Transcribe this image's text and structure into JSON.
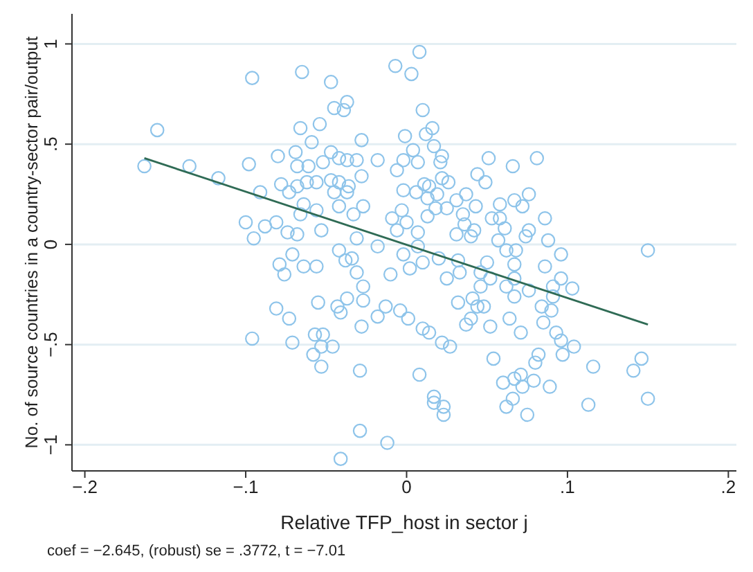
{
  "chart_data": {
    "type": "scatter",
    "xlabel": "Relative TFP_host in sector j",
    "ylabel": "No. of source countries in a country-sector pair/output",
    "annotations": [
      "coef = −2.645, (robust) se = .3772, t = −7.01"
    ],
    "xlim": [
      -0.208,
      0.205
    ],
    "ylim": [
      -1.13,
      1.15
    ],
    "xticks": [
      {
        "value": -0.2,
        "label": "−.2"
      },
      {
        "value": -0.1,
        "label": "−.1"
      },
      {
        "value": 0,
        "label": "0"
      },
      {
        "value": 0.1,
        "label": ".1"
      },
      {
        "value": 0.2,
        "label": ".2"
      }
    ],
    "yticks": [
      {
        "value": -1,
        "label": "−1"
      },
      {
        "value": -0.5,
        "label": "−.5"
      },
      {
        "value": 0,
        "label": "0"
      },
      {
        "value": 0.5,
        "label": ".5"
      },
      {
        "value": 1,
        "label": "1"
      }
    ],
    "grid": "y",
    "legend": false,
    "marker": "circle",
    "series": [
      {
        "color": "#8ec4ea",
        "x": [
          -0.163,
          -0.155,
          -0.135,
          -0.117,
          -0.096,
          -0.065,
          -0.098,
          -0.08,
          -0.078,
          -0.091,
          -0.1,
          -0.095,
          -0.088,
          -0.081,
          -0.074,
          -0.068,
          -0.071,
          -0.079,
          -0.064,
          -0.056,
          -0.047,
          -0.045,
          -0.037,
          -0.039,
          -0.066,
          -0.054,
          -0.059,
          -0.028,
          -0.069,
          -0.047,
          -0.042,
          -0.068,
          -0.061,
          -0.052,
          -0.037,
          -0.031,
          -0.062,
          -0.068,
          -0.073,
          -0.056,
          -0.047,
          -0.042,
          -0.036,
          -0.045,
          -0.037,
          -0.028,
          -0.064,
          -0.056,
          -0.042,
          -0.033,
          -0.053,
          -0.031,
          -0.042,
          -0.034,
          -0.066,
          -0.027,
          0.008,
          -0.007,
          0.003,
          0.01,
          0.016,
          0.012,
          -0.001,
          0.017,
          0.004,
          0.022,
          0.021,
          -0.018,
          -0.002,
          0.007,
          -0.006,
          0.051,
          0.066,
          0.081,
          0.044,
          0.049,
          0.022,
          0.026,
          0.011,
          0.014,
          -0.002,
          0.006,
          0.019,
          0.037,
          0.076,
          0.013,
          0.031,
          0.067,
          0.058,
          0.043,
          0.072,
          -0.003,
          0.018,
          0.025,
          0.013,
          -0.009,
          0.035,
          0.053,
          0.058,
          0.086,
          0,
          0.036,
          0.042,
          0.061,
          0.076,
          0.007,
          0.031,
          0.04,
          0.057,
          0.074,
          0.088,
          -0.006,
          0.007,
          -0.018,
          0.062,
          0.068,
          0.096,
          0.15,
          -0.002,
          0.02,
          0.01,
          0.05,
          0.002,
          0.067,
          0.086,
          0.032,
          -0.01,
          0.025,
          0.033,
          0.046,
          0.052,
          0.062,
          0.067,
          0.076,
          0.067,
          0.091,
          0.096,
          0.103,
          0.091,
          0.084,
          0.09,
          0.085,
          0.093,
          0.096,
          0.104,
          0.097,
          0.082,
          0.08,
          0.116,
          0.146,
          0.141,
          0.15,
          0.113,
          0.089,
          0.079,
          0.071,
          0.067,
          0.06,
          0.072,
          0.066,
          0.062,
          0.075,
          0.071,
          0.052,
          0.054,
          0.064,
          0.032,
          0.037,
          0.04,
          0.044,
          0.048,
          0.041,
          0.046,
          -0.004,
          0.001,
          -0.013,
          -0.018,
          0.01,
          0.014,
          0.022,
          0.027,
          0.008,
          0.017,
          0.017,
          0.023,
          0.023,
          -0.012,
          -0.076,
          -0.081,
          -0.073,
          -0.055,
          -0.043,
          -0.041,
          -0.037,
          -0.027,
          -0.028,
          -0.038,
          -0.031,
          -0.027,
          -0.096,
          -0.071,
          -0.057,
          -0.052,
          -0.053,
          -0.046,
          -0.058,
          -0.053,
          -0.029,
          -0.029,
          -0.041
        ],
        "values": [
          0.39,
          0.57,
          0.39,
          0.33,
          0.83,
          0.86,
          0.4,
          0.44,
          0.3,
          0.26,
          0.11,
          0.03,
          0.09,
          0.11,
          0.06,
          0.05,
          -0.05,
          -0.1,
          -0.11,
          -0.11,
          0.81,
          0.68,
          0.71,
          0.67,
          0.58,
          0.6,
          0.51,
          0.52,
          0.46,
          0.46,
          0.43,
          0.39,
          0.39,
          0.41,
          0.42,
          0.42,
          0.31,
          0.29,
          0.26,
          0.31,
          0.32,
          0.31,
          0.29,
          0.26,
          0.26,
          0.34,
          0.2,
          0.17,
          0.19,
          0.15,
          0.07,
          0.03,
          -0.03,
          -0.07,
          0.15,
          0.19,
          0.96,
          0.89,
          0.85,
          0.67,
          0.58,
          0.55,
          0.54,
          0.49,
          0.47,
          0.44,
          0.41,
          0.42,
          0.42,
          0.41,
          0.37,
          0.43,
          0.39,
          0.43,
          0.35,
          0.31,
          0.33,
          0.31,
          0.3,
          0.29,
          0.27,
          0.26,
          0.25,
          0.25,
          0.25,
          0.23,
          0.22,
          0.22,
          0.2,
          0.19,
          0.19,
          0.17,
          0.18,
          0.18,
          0.14,
          0.13,
          0.15,
          0.13,
          0.13,
          0.13,
          0.11,
          0.1,
          0.07,
          0.08,
          0.07,
          0.06,
          0.05,
          0.04,
          0.02,
          0.04,
          0.02,
          0.07,
          -0.01,
          -0.01,
          -0.03,
          -0.03,
          -0.05,
          -0.03,
          -0.05,
          -0.07,
          -0.09,
          -0.09,
          -0.12,
          -0.1,
          -0.11,
          -0.08,
          -0.15,
          -0.17,
          -0.14,
          -0.14,
          -0.17,
          -0.21,
          -0.26,
          -0.23,
          -0.17,
          -0.21,
          -0.17,
          -0.22,
          -0.26,
          -0.31,
          -0.33,
          -0.39,
          -0.44,
          -0.48,
          -0.51,
          -0.55,
          -0.55,
          -0.59,
          -0.61,
          -0.57,
          -0.63,
          -0.77,
          -0.8,
          -0.71,
          -0.68,
          -0.65,
          -0.67,
          -0.69,
          -0.71,
          -0.77,
          -0.81,
          -0.85,
          -0.44,
          -0.41,
          -0.57,
          -0.37,
          -0.29,
          -0.4,
          -0.37,
          -0.31,
          -0.31,
          -0.27,
          -0.21,
          -0.33,
          -0.37,
          -0.31,
          -0.36,
          -0.42,
          -0.44,
          -0.49,
          -0.51,
          -0.65,
          -0.76,
          -0.79,
          -0.81,
          -0.85,
          -0.99,
          -0.15,
          -0.32,
          -0.37,
          -0.29,
          -0.31,
          -0.34,
          -0.27,
          -0.28,
          -0.41,
          -0.08,
          -0.14,
          -0.21,
          -0.47,
          -0.49,
          -0.45,
          -0.45,
          -0.51,
          -0.51,
          -0.55,
          -0.61,
          -0.63,
          -0.93,
          -1.07
        ]
      },
      {
        "type": "line",
        "marker": "none",
        "color": "#2f6b55",
        "x": [
          -0.163,
          0.15
        ],
        "values": [
          0.43,
          -0.4
        ]
      }
    ]
  }
}
